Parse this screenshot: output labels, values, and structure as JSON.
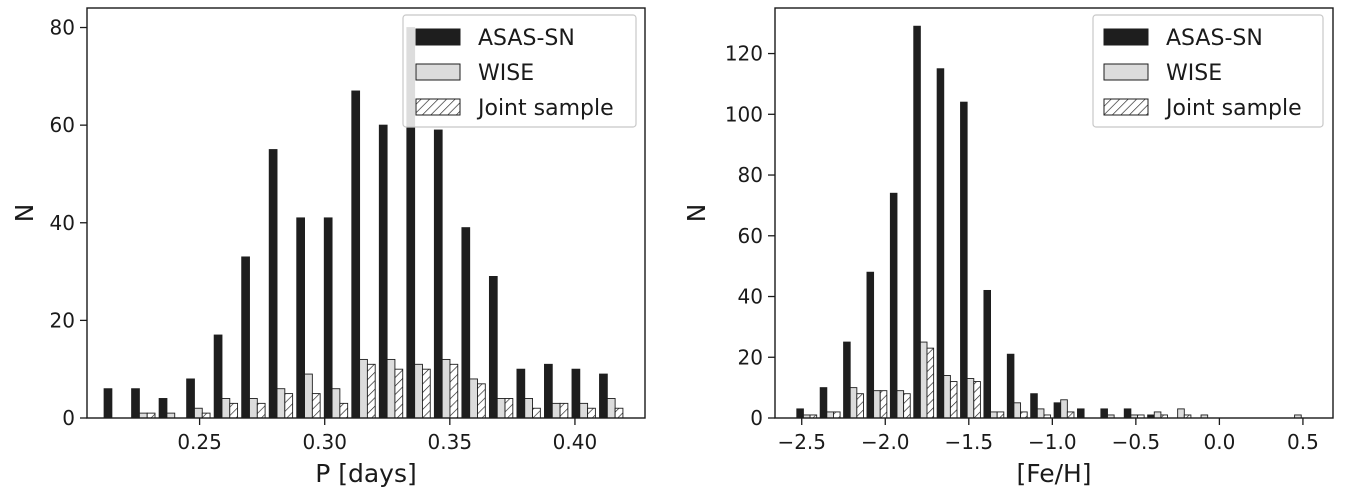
{
  "chart_data": [
    {
      "type": "bar",
      "xlabel": "P [days]",
      "ylabel": "N",
      "xlim": [
        0.205,
        0.428
      ],
      "ylim": [
        0,
        84
      ],
      "xticks": [
        0.25,
        0.3,
        0.35,
        0.4
      ],
      "xtick_labels": [
        "0.25",
        "0.30",
        "0.35",
        "0.40"
      ],
      "yticks": [
        0,
        20,
        40,
        60,
        80
      ],
      "ytick_labels": [
        "0",
        "20",
        "40",
        "60",
        "80"
      ],
      "bin_centers": [
        0.2165,
        0.2275,
        0.2385,
        0.2495,
        0.2605,
        0.2715,
        0.2825,
        0.2935,
        0.3045,
        0.3155,
        0.3265,
        0.3375,
        0.3485,
        0.3595,
        0.3705,
        0.3815,
        0.3925,
        0.4035,
        0.4145
      ],
      "series": [
        {
          "name": "ASAS-SN",
          "style": "solid",
          "color": "#1e1e1e",
          "values": [
            6,
            6,
            4,
            8,
            17,
            33,
            55,
            41,
            41,
            67,
            60,
            80,
            59,
            39,
            29,
            10,
            11,
            10,
            9
          ]
        },
        {
          "name": "WISE",
          "style": "light",
          "color": "#dcdcdc",
          "values": [
            0,
            1,
            1,
            2,
            4,
            4,
            6,
            9,
            6,
            12,
            12,
            11,
            12,
            8,
            4,
            4,
            3,
            3,
            4
          ]
        },
        {
          "name": "Joint sample",
          "style": "hatch",
          "color": "#ffffff",
          "values": [
            0,
            1,
            0,
            1,
            3,
            3,
            5,
            5,
            3,
            11,
            10,
            10,
            11,
            7,
            4,
            2,
            3,
            2,
            2
          ]
        }
      ],
      "legend": {
        "position": "top-right",
        "entries": [
          "ASAS-SN",
          "WISE",
          "Joint sample"
        ]
      }
    },
    {
      "type": "bar",
      "xlabel": "[Fe/H]",
      "ylabel": "N",
      "xlim": [
        -2.66,
        0.68
      ],
      "ylim": [
        0,
        135
      ],
      "xticks": [
        -2.5,
        -2.0,
        -1.5,
        -1.0,
        -0.5,
        0.0,
        0.5
      ],
      "xtick_labels": [
        "−2.5",
        "−2.0",
        "−1.5",
        "−1.0",
        "−0.5",
        "0.0",
        "0.5"
      ],
      "yticks": [
        0,
        20,
        40,
        60,
        80,
        100,
        120
      ],
      "ytick_labels": [
        "0",
        "20",
        "40",
        "60",
        "80",
        "100",
        "120"
      ],
      "bin_centers": [
        -2.47,
        -2.33,
        -2.19,
        -2.05,
        -1.91,
        -1.77,
        -1.63,
        -1.49,
        -1.35,
        -1.21,
        -1.07,
        -0.93,
        -0.79,
        -0.65,
        -0.51,
        -0.37,
        -0.23,
        -0.09,
        0.05,
        0.19,
        0.33,
        0.47
      ],
      "series": [
        {
          "name": "ASAS-SN",
          "style": "solid",
          "color": "#1e1e1e",
          "values": [
            3,
            10,
            25,
            48,
            74,
            129,
            115,
            104,
            42,
            21,
            8,
            5,
            3,
            3,
            3,
            1,
            0,
            0,
            0,
            0,
            0,
            0
          ]
        },
        {
          "name": "WISE",
          "style": "light",
          "color": "#dcdcdc",
          "values": [
            1,
            2,
            10,
            9,
            9,
            25,
            14,
            13,
            2,
            5,
            3,
            6,
            0,
            1,
            1,
            2,
            3,
            1,
            0,
            0,
            0,
            1
          ]
        },
        {
          "name": "Joint sample",
          "style": "hatch",
          "color": "#ffffff",
          "values": [
            1,
            2,
            8,
            9,
            8,
            23,
            12,
            12,
            2,
            2,
            1,
            2,
            0,
            0,
            1,
            1,
            1,
            0,
            0,
            0,
            0,
            0
          ]
        }
      ],
      "legend": {
        "position": "top-right",
        "entries": [
          "ASAS-SN",
          "WISE",
          "Joint sample"
        ]
      }
    }
  ]
}
